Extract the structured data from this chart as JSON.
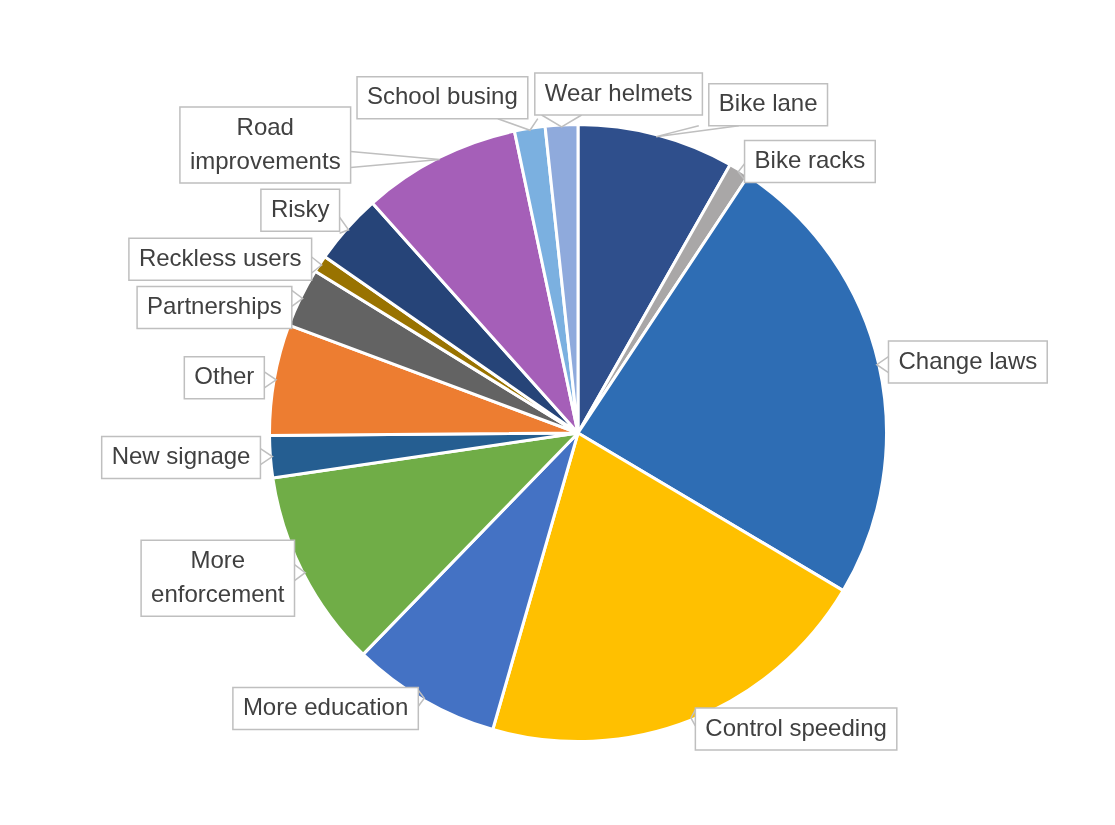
{
  "chart_data": {
    "type": "pie",
    "categories": [
      "Bike lane",
      "Bike racks",
      "Change laws",
      "Control speeding",
      "More education",
      "More enforcement",
      "New signage",
      "Other",
      "Partnerships",
      "Reckless users",
      "Risky",
      "Road improvements",
      "School busing",
      "Wear helmets"
    ],
    "values": [
      8.2,
      1.1,
      24.2,
      20.9,
      7.8,
      10.4,
      2.2,
      5.8,
      3.1,
      0.9,
      3.7,
      8.3,
      1.6,
      1.7
    ],
    "colors": [
      "#2f4f8c",
      "#a9a7a7",
      "#2e6db4",
      "#ffc000",
      "#4472c4",
      "#70ad47",
      "#255e91",
      "#ed7d31",
      "#636363",
      "#997300",
      "#264478",
      "#a55fb8",
      "#7bb0e0",
      "#8faadc"
    ],
    "legend": false
  }
}
